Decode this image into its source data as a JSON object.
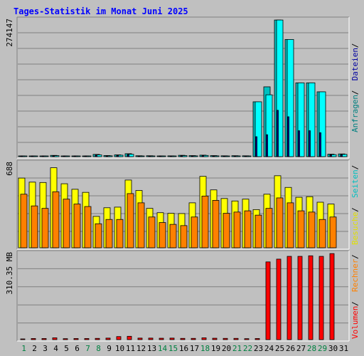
{
  "chart_data": {
    "type": "bar",
    "title": "Tages-Statistik im Monat Juni 2025",
    "x": [
      1,
      2,
      3,
      4,
      5,
      6,
      7,
      8,
      9,
      10,
      11,
      12,
      13,
      14,
      15,
      16,
      17,
      18,
      19,
      20,
      21,
      22,
      23,
      24,
      25,
      26,
      27,
      28,
      29,
      30,
      31
    ],
    "day_label_colors": [
      "#008040",
      "#000000",
      "#000000",
      "#000000",
      "#000000",
      "#000000",
      "#008040",
      "#008040",
      "#000000",
      "#000000",
      "#000000",
      "#000000",
      "#000000",
      "#008040",
      "#008040",
      "#000000",
      "#000000",
      "#008040",
      "#000000",
      "#000000",
      "#008040",
      "#008040",
      "#000000",
      "#000000",
      "#000000",
      "#000000",
      "#000000",
      "#008040",
      "#008040",
      "#000000",
      "#000000"
    ],
    "panels": [
      {
        "name": "requests",
        "axis_max_label": "274147",
        "ymax": 274147,
        "legend": [
          {
            "text": "Anfragen",
            "color": "#008080"
          },
          {
            "text": " / ",
            "color": "#000000"
          },
          {
            "text": "Dateien",
            "color": "#0000a0"
          },
          {
            "text": " / ",
            "color": "#000000"
          }
        ],
        "series": [
          {
            "name": "Anfragen",
            "color": "#00c0c0",
            "values": [
              1200,
              1300,
              1100,
              2500,
              1400,
              1300,
              1200,
              4500,
              2200,
              3600,
              5900,
              1800,
              1800,
              1400,
              1600,
              2700,
              2100,
              3000,
              2100,
              1700,
              1900,
              1700,
              110000,
              140000,
              274000,
              235000,
              148000,
              148000,
              130000,
              5000,
              5400
            ]
          },
          {
            "name": "Seiten",
            "color": "#00ffff",
            "values": [
              900,
              1000,
              800,
              2000,
              1000,
              1000,
              900,
              3500,
              1700,
              2900,
              4700,
              1400,
              1400,
              1100,
              1200,
              2100,
              1600,
              2400,
              1600,
              1300,
              1500,
              1300,
              110000,
              124000,
              274000,
              235000,
              148000,
              148000,
              130000,
              4000,
              4500
            ]
          },
          {
            "name": "Dateien",
            "color": "#0000a0",
            "values": [
              600,
              700,
              500,
              1500,
              700,
              700,
              600,
              2600,
              1300,
              2200,
              3600,
              1000,
              1000,
              800,
              900,
              1600,
              1200,
              1900,
              1200,
              900,
              1100,
              900,
              40000,
              44000,
              93000,
              80000,
              52000,
              52000,
              48000,
              3000,
              3300
            ]
          }
        ]
      },
      {
        "name": "visits",
        "axis_max_label": "688",
        "ymax": 688,
        "series": [
          {
            "name": "Besuche",
            "color": "#ffff00",
            "values": [
              566,
              533,
              530,
              650,
              520,
              475,
              450,
              255,
              325,
              330,
              550,
              465,
              320,
              285,
              280,
              278,
              365,
              580,
              470,
              400,
              380,
              395,
              310,
              435,
              585,
              490,
              410,
              415,
              370,
              355,
              null
            ]
          },
          {
            "name": "Rechner",
            "color": "#ff8000",
            "values": [
              435,
              340,
              320,
              455,
              395,
              355,
              335,
              195,
              230,
              230,
              440,
              365,
              250,
              205,
              190,
              180,
              250,
              420,
              385,
              280,
              290,
              300,
              265,
              320,
              405,
              365,
              300,
              290,
              230,
              250,
              null
            ]
          }
        ]
      },
      {
        "name": "volume",
        "axis_max_label": "310.35 MB",
        "unit": "MB",
        "ymax": 310.35,
        "series": [
          {
            "name": "Volumen",
            "color": "#ff0000",
            "values": [
              2.5,
              4.0,
              4.0,
              6.5,
              3.5,
              4.0,
              4.0,
              4.5,
              5.5,
              11,
              12,
              5.5,
              5.5,
              5,
              5.5,
              4.5,
              4.5,
              6.5,
              5,
              4.5,
              4.5,
              3.5,
              4.0,
              280,
              290,
              300,
              300,
              302,
              300,
              310,
              null
            ]
          }
        ]
      }
    ],
    "bottom_legend": [
      {
        "text": "Volumen",
        "color": "#ff0000"
      },
      {
        "text": " / ",
        "color": "#000000"
      },
      {
        "text": "Rechner",
        "color": "#ff8000"
      },
      {
        "text": " / ",
        "color": "#000000"
      },
      {
        "text": "Besuche",
        "color": "#e0e000"
      },
      {
        "text": " / ",
        "color": "#000000"
      },
      {
        "text": "Seiten",
        "color": "#00c0c0"
      },
      {
        "text": " / ",
        "color": "#000000"
      }
    ],
    "grid": true
  }
}
